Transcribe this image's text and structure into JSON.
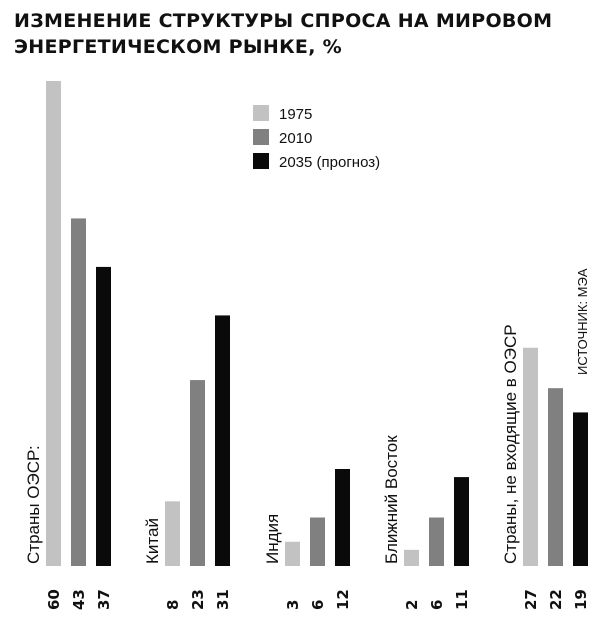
{
  "title": "Изменение структуры спроса на мировом энергетическом рынке, %",
  "source": "ИСТОЧНИК: МЭА",
  "colors": {
    "1975": "#c2c2c2",
    "2010": "#808080",
    "2035": "#0a0a0a"
  },
  "chart_data": {
    "type": "bar",
    "title": "Изменение структуры спроса на мировом энергетическом рынке, %",
    "categories": [
      "Страны ОЭСР",
      "Китай",
      "Индия",
      "Ближний Восток",
      "Страны, не входящие в ОЭСР"
    ],
    "series": [
      {
        "name": "1975",
        "values": [
          60,
          8,
          3,
          2,
          27
        ]
      },
      {
        "name": "2010",
        "values": [
          43,
          23,
          6,
          6,
          22
        ]
      },
      {
        "name": "2035 (прогноз)",
        "values": [
          37,
          31,
          12,
          11,
          19
        ]
      }
    ],
    "ylim": [
      0,
      60
    ],
    "grid": false,
    "legend_position": "top-center",
    "value_labels_position": "bottom-rotated"
  }
}
